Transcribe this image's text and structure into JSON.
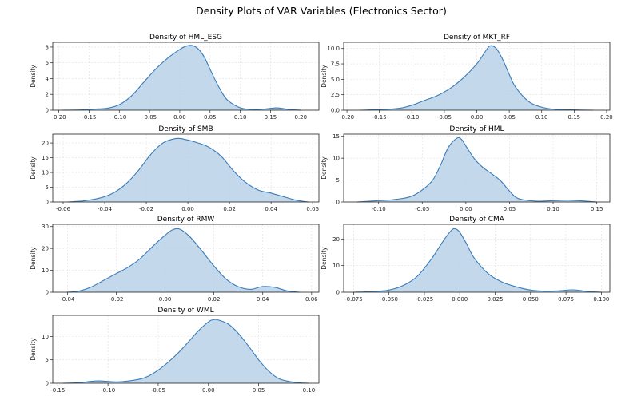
{
  "figure_title": "Density Plots of VAR Variables (Electronics Sector)",
  "colors": {
    "line": "#3a7cb8",
    "fill": "#b9d1e7",
    "grid": "#e1e1e1",
    "axis": "#222222"
  },
  "chart_data": [
    {
      "type": "area",
      "title": "Density of HML_ESG",
      "xlabel": "",
      "ylabel": "Density",
      "xlim": [
        -0.21,
        0.23
      ],
      "ylim": [
        0,
        8.6
      ],
      "xticks": [
        -0.2,
        -0.15,
        -0.1,
        -0.05,
        0.0,
        0.05,
        0.1,
        0.15,
        0.2
      ],
      "xtick_labels": [
        "-0.20",
        "-0.15",
        "-0.10",
        "-0.05",
        "0.00",
        "0.05",
        "0.10",
        "0.15",
        "0.20"
      ],
      "yticks": [
        0,
        2,
        4,
        6,
        8
      ],
      "ytick_labels": [
        "0",
        "2",
        "4",
        "6",
        "8"
      ],
      "grid": true,
      "x": [
        -0.195,
        -0.16,
        -0.14,
        -0.12,
        -0.1,
        -0.08,
        -0.06,
        -0.04,
        -0.02,
        0.0,
        0.01,
        0.02,
        0.03,
        0.04,
        0.05,
        0.06,
        0.07,
        0.08,
        0.1,
        0.12,
        0.14,
        0.16,
        0.18,
        0.2
      ],
      "y": [
        0.0,
        0.05,
        0.15,
        0.25,
        0.7,
        1.8,
        3.5,
        5.2,
        6.6,
        7.7,
        8.1,
        8.2,
        7.8,
        6.8,
        5.2,
        3.6,
        2.2,
        1.2,
        0.3,
        0.1,
        0.15,
        0.3,
        0.1,
        0.0
      ]
    },
    {
      "type": "area",
      "title": "Density of MKT_RF",
      "xlabel": "",
      "ylabel": "Density",
      "xlim": [
        -0.205,
        0.205
      ],
      "ylim": [
        0,
        11.0
      ],
      "xticks": [
        -0.2,
        -0.15,
        -0.1,
        -0.05,
        0.0,
        0.05,
        0.1,
        0.15,
        0.2
      ],
      "xtick_labels": [
        "-0.20",
        "-0.15",
        "-0.10",
        "-0.05",
        "0.00",
        "0.05",
        "0.10",
        "0.15",
        "0.20"
      ],
      "yticks": [
        0,
        2.5,
        5.0,
        7.5,
        10.0
      ],
      "ytick_labels": [
        "0.0",
        "2.5",
        "5.0",
        "7.5",
        "10.0"
      ],
      "grid": true,
      "x": [
        -0.18,
        -0.15,
        -0.12,
        -0.1,
        -0.08,
        -0.06,
        -0.04,
        -0.02,
        0.0,
        0.01,
        0.02,
        0.03,
        0.04,
        0.05,
        0.06,
        0.08,
        0.1,
        0.12,
        0.15,
        0.18
      ],
      "y": [
        0.0,
        0.1,
        0.3,
        0.8,
        1.6,
        2.4,
        3.6,
        5.3,
        7.5,
        9.0,
        10.4,
        10.0,
        8.2,
        5.8,
        3.7,
        1.4,
        0.5,
        0.15,
        0.05,
        0.0
      ]
    },
    {
      "type": "area",
      "title": "Density of SMB",
      "xlabel": "",
      "ylabel": "Density",
      "xlim": [
        -0.065,
        0.063
      ],
      "ylim": [
        0,
        23.0
      ],
      "xticks": [
        -0.06,
        -0.04,
        -0.02,
        0.0,
        0.02,
        0.04,
        0.06
      ],
      "xtick_labels": [
        "-0.06",
        "-0.04",
        "-0.02",
        "0.00",
        "0.02",
        "0.04",
        "0.06"
      ],
      "yticks": [
        0,
        5,
        10,
        15,
        20
      ],
      "ytick_labels": [
        "0",
        "5",
        "10",
        "15",
        "20"
      ],
      "grid": true,
      "x": [
        -0.058,
        -0.05,
        -0.042,
        -0.036,
        -0.03,
        -0.024,
        -0.018,
        -0.012,
        -0.006,
        -0.002,
        0.004,
        0.01,
        0.016,
        0.022,
        0.028,
        0.034,
        0.04,
        0.046,
        0.052,
        0.058
      ],
      "y": [
        0.0,
        0.4,
        1.4,
        3.0,
        6.0,
        10.5,
        16.0,
        20.0,
        21.5,
        21.3,
        20.2,
        18.6,
        15.5,
        10.5,
        6.5,
        4.0,
        3.0,
        1.8,
        0.6,
        0.0
      ]
    },
    {
      "type": "area",
      "title": "Density of HML",
      "xlabel": "",
      "ylabel": "Density",
      "xlim": [
        -0.14,
        0.165
      ],
      "ylim": [
        0,
        15.5
      ],
      "xticks": [
        -0.1,
        -0.05,
        0.0,
        0.05,
        0.1,
        0.15
      ],
      "xtick_labels": [
        "-0.10",
        "-0.05",
        "0.00",
        "0.05",
        "0.10",
        "0.15"
      ],
      "yticks": [
        0,
        5,
        10,
        15
      ],
      "ytick_labels": [
        "0",
        "5",
        "10",
        "15"
      ],
      "grid": true,
      "x": [
        -0.125,
        -0.1,
        -0.08,
        -0.06,
        -0.04,
        -0.03,
        -0.02,
        -0.01,
        -0.005,
        0.0,
        0.01,
        0.02,
        0.03,
        0.04,
        0.05,
        0.06,
        0.08,
        0.1,
        0.12,
        0.15
      ],
      "y": [
        0.0,
        0.3,
        0.6,
        1.5,
        4.5,
        8.0,
        12.5,
        14.6,
        14.3,
        12.8,
        9.8,
        7.8,
        6.4,
        4.8,
        2.5,
        0.8,
        0.2,
        0.3,
        0.4,
        0.0
      ]
    },
    {
      "type": "area",
      "title": "Density of RMW",
      "xlabel": "",
      "ylabel": "Density",
      "xlim": [
        -0.046,
        0.063
      ],
      "ylim": [
        0,
        31.0
      ],
      "xticks": [
        -0.04,
        -0.02,
        0.0,
        0.02,
        0.04,
        0.06
      ],
      "xtick_labels": [
        "-0.04",
        "-0.02",
        "0.00",
        "0.02",
        "0.04",
        "0.06"
      ],
      "yticks": [
        0,
        10,
        20,
        30
      ],
      "ytick_labels": [
        "0",
        "10",
        "20",
        "30"
      ],
      "grid": true,
      "x": [
        -0.04,
        -0.035,
        -0.03,
        -0.025,
        -0.02,
        -0.015,
        -0.01,
        -0.005,
        0.0,
        0.003,
        0.006,
        0.01,
        0.015,
        0.02,
        0.025,
        0.03,
        0.035,
        0.04,
        0.045,
        0.05,
        0.055
      ],
      "y": [
        0.0,
        0.6,
        2.5,
        5.5,
        8.5,
        11.5,
        15.5,
        21.0,
        26.0,
        28.5,
        28.8,
        25.5,
        19.0,
        12.0,
        6.0,
        2.5,
        1.3,
        2.6,
        2.2,
        0.6,
        0.0
      ]
    },
    {
      "type": "area",
      "title": "Density of CMA",
      "xlabel": "",
      "ylabel": "Density",
      "xlim": [
        -0.082,
        0.106
      ],
      "ylim": [
        0,
        25.5
      ],
      "xticks": [
        -0.075,
        -0.05,
        -0.025,
        0.0,
        0.025,
        0.05,
        0.075,
        0.1
      ],
      "xtick_labels": [
        "-0.075",
        "-0.050",
        "-0.025",
        "0.000",
        "0.025",
        "0.050",
        "0.075",
        "0.100"
      ],
      "yticks": [
        0,
        10,
        20
      ],
      "ytick_labels": [
        "0",
        "10",
        "20"
      ],
      "grid": true,
      "x": [
        -0.075,
        -0.06,
        -0.05,
        -0.04,
        -0.03,
        -0.02,
        -0.012,
        -0.006,
        -0.003,
        0.0,
        0.005,
        0.01,
        0.02,
        0.03,
        0.04,
        0.05,
        0.06,
        0.07,
        0.08,
        0.09,
        0.1
      ],
      "y": [
        0.0,
        0.3,
        0.8,
        2.5,
        6.0,
        12.5,
        19.0,
        23.2,
        23.8,
        22.5,
        18.0,
        13.0,
        7.0,
        3.8,
        2.0,
        0.8,
        0.4,
        0.5,
        0.9,
        0.3,
        0.0
      ]
    },
    {
      "type": "area",
      "title": "Density of WML",
      "xlabel": "",
      "ylabel": "Density",
      "xlim": [
        -0.155,
        0.11
      ],
      "ylim": [
        0,
        14.5
      ],
      "xticks": [
        -0.15,
        -0.1,
        -0.05,
        0.0,
        0.05,
        0.1
      ],
      "xtick_labels": [
        "-0.15",
        "-0.10",
        "-0.05",
        "0.00",
        "0.05",
        "0.10"
      ],
      "yticks": [
        0,
        5,
        10
      ],
      "ytick_labels": [
        "0",
        "5",
        "10"
      ],
      "grid": true,
      "x": [
        -0.145,
        -0.13,
        -0.11,
        -0.09,
        -0.07,
        -0.06,
        -0.05,
        -0.04,
        -0.03,
        -0.02,
        -0.01,
        0.0,
        0.005,
        0.01,
        0.02,
        0.03,
        0.04,
        0.05,
        0.06,
        0.07,
        0.08,
        0.09,
        0.1
      ],
      "y": [
        0.0,
        0.1,
        0.5,
        0.3,
        0.8,
        1.5,
        2.8,
        4.5,
        6.5,
        8.8,
        11.2,
        13.1,
        13.6,
        13.5,
        12.6,
        10.6,
        7.9,
        5.0,
        2.6,
        1.0,
        0.4,
        0.1,
        0.0
      ]
    }
  ]
}
